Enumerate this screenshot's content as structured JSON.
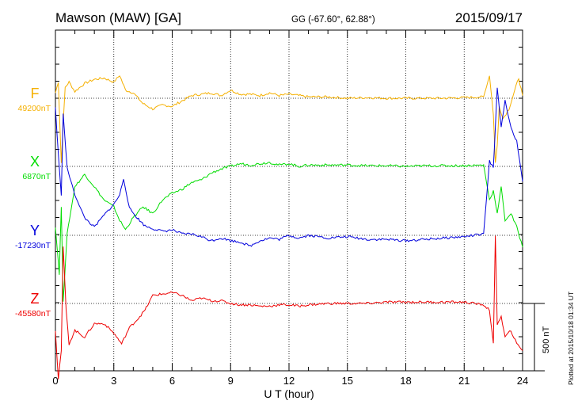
{
  "header": {
    "station": "Mawson (MAW)  [GA]",
    "coords": "GG (-67.60°,  62.88°)",
    "date": "2015/09/17"
  },
  "footer": {
    "plotted": "Plotted at 2015/10/18 01:34 UT",
    "scale_label": "500 nT",
    "scale_nT": 500
  },
  "chart_data": {
    "type": "line",
    "xlabel": "U T (hour)",
    "xlim": [
      0,
      24
    ],
    "xticks": [
      "0",
      "3",
      "6",
      "9",
      "12",
      "15",
      "18",
      "21",
      "24"
    ],
    "grid": true,
    "series": [
      {
        "name": "F",
        "baseline_label": "49200nT",
        "color": "#f5b000",
        "x": [
          0,
          0.15,
          0.3,
          0.4,
          0.5,
          0.7,
          1.0,
          1.5,
          2.0,
          2.5,
          3.0,
          3.3,
          3.6,
          4.0,
          4.5,
          5.0,
          5.5,
          6.0,
          6.5,
          7.0,
          7.5,
          8.0,
          8.5,
          9.0,
          9.5,
          10.0,
          10.5,
          11.0,
          11.5,
          12.0,
          12.5,
          13.0,
          14.0,
          15.0,
          16.0,
          17.0,
          18.0,
          19.0,
          20.0,
          21.0,
          22.0,
          22.3,
          22.5,
          22.6,
          22.7,
          22.8,
          23.0,
          23.3,
          23.6,
          23.8,
          24.0
        ],
        "y": [
          40,
          120,
          -480,
          -180,
          80,
          120,
          50,
          110,
          140,
          150,
          120,
          170,
          60,
          40,
          -40,
          -80,
          -50,
          -60,
          -20,
          20,
          30,
          40,
          20,
          60,
          30,
          30,
          20,
          40,
          20,
          30,
          20,
          10,
          10,
          0,
          5,
          0,
          0,
          0,
          0,
          5,
          10,
          170,
          -120,
          -480,
          -350,
          -60,
          -150,
          -80,
          60,
          150,
          20
        ]
      },
      {
        "name": "X",
        "baseline_label": "6870nT",
        "color": "#00dd00",
        "x": [
          0,
          0.2,
          0.3,
          0.4,
          0.6,
          1.0,
          1.5,
          2.0,
          2.5,
          3.0,
          3.3,
          3.6,
          4.0,
          4.5,
          5.0,
          5.5,
          6.0,
          6.5,
          7.0,
          7.5,
          8.0,
          8.5,
          9.0,
          9.5,
          10.0,
          10.5,
          11.0,
          11.5,
          12.0,
          12.5,
          13.0,
          14.0,
          15.0,
          16.0,
          17.0,
          18.0,
          19.0,
          20.0,
          21.0,
          22.0,
          22.3,
          22.5,
          22.7,
          22.9,
          23.1,
          23.4,
          23.7,
          24.0
        ],
        "y": [
          -450,
          -800,
          -300,
          -1000,
          -500,
          -150,
          -60,
          -150,
          -250,
          -300,
          -400,
          -470,
          -380,
          -300,
          -350,
          -250,
          -200,
          -170,
          -120,
          -100,
          -50,
          -20,
          0,
          20,
          10,
          20,
          30,
          10,
          20,
          0,
          10,
          10,
          10,
          5,
          5,
          0,
          5,
          5,
          5,
          10,
          -250,
          -180,
          -350,
          -150,
          -400,
          -350,
          -450,
          -600
        ]
      },
      {
        "name": "Y",
        "baseline_label": "-17230nT",
        "color": "#0000dd",
        "x": [
          0,
          0.15,
          0.3,
          0.4,
          0.6,
          1.0,
          1.5,
          2.0,
          2.5,
          3.0,
          3.3,
          3.5,
          3.8,
          4.2,
          4.6,
          5.0,
          5.5,
          6.0,
          6.5,
          7.0,
          7.5,
          8.0,
          8.5,
          9.0,
          9.5,
          10.0,
          10.5,
          11.0,
          11.5,
          12.0,
          12.5,
          13.0,
          14.0,
          15.0,
          16.0,
          17.0,
          18.0,
          19.0,
          20.0,
          21.0,
          22.0,
          22.3,
          22.5,
          22.7,
          22.9,
          23.1,
          23.4,
          23.7,
          24.0
        ],
        "y": [
          950,
          600,
          300,
          900,
          500,
          300,
          130,
          60,
          150,
          230,
          300,
          420,
          200,
          130,
          70,
          50,
          30,
          40,
          10,
          10,
          -10,
          -40,
          -20,
          -40,
          -50,
          -80,
          -40,
          -20,
          -30,
          0,
          -20,
          0,
          -20,
          -10,
          -30,
          -30,
          -40,
          -30,
          -20,
          -10,
          10,
          550,
          500,
          1100,
          800,
          1000,
          800,
          700,
          400
        ]
      },
      {
        "name": "Z",
        "baseline_label": "-45580nT",
        "color": "#ee0000",
        "x": [
          0,
          0.15,
          0.3,
          0.4,
          0.55,
          0.7,
          1.0,
          1.5,
          2.0,
          2.5,
          3.0,
          3.4,
          3.8,
          4.2,
          4.6,
          5.0,
          5.5,
          6.0,
          6.5,
          7.0,
          7.5,
          8.0,
          8.5,
          9.0,
          9.5,
          10.0,
          10.5,
          11.0,
          11.5,
          12.0,
          12.5,
          13.0,
          14.0,
          15.0,
          16.0,
          17.0,
          18.0,
          19.0,
          20.0,
          21.0,
          22.0,
          22.3,
          22.5,
          22.6,
          22.7,
          22.9,
          23.1,
          23.4,
          23.7,
          24.0
        ],
        "y": [
          -200,
          -560,
          -350,
          420,
          -50,
          -300,
          -200,
          -250,
          -150,
          -150,
          -220,
          -300,
          -180,
          -120,
          -50,
          60,
          70,
          80,
          60,
          20,
          40,
          20,
          20,
          0,
          -10,
          -10,
          -20,
          -20,
          -10,
          -10,
          -20,
          -10,
          0,
          0,
          0,
          10,
          10,
          10,
          10,
          10,
          -10,
          -50,
          -300,
          500,
          -150,
          -100,
          -250,
          -200,
          -300,
          -350
        ]
      }
    ]
  }
}
